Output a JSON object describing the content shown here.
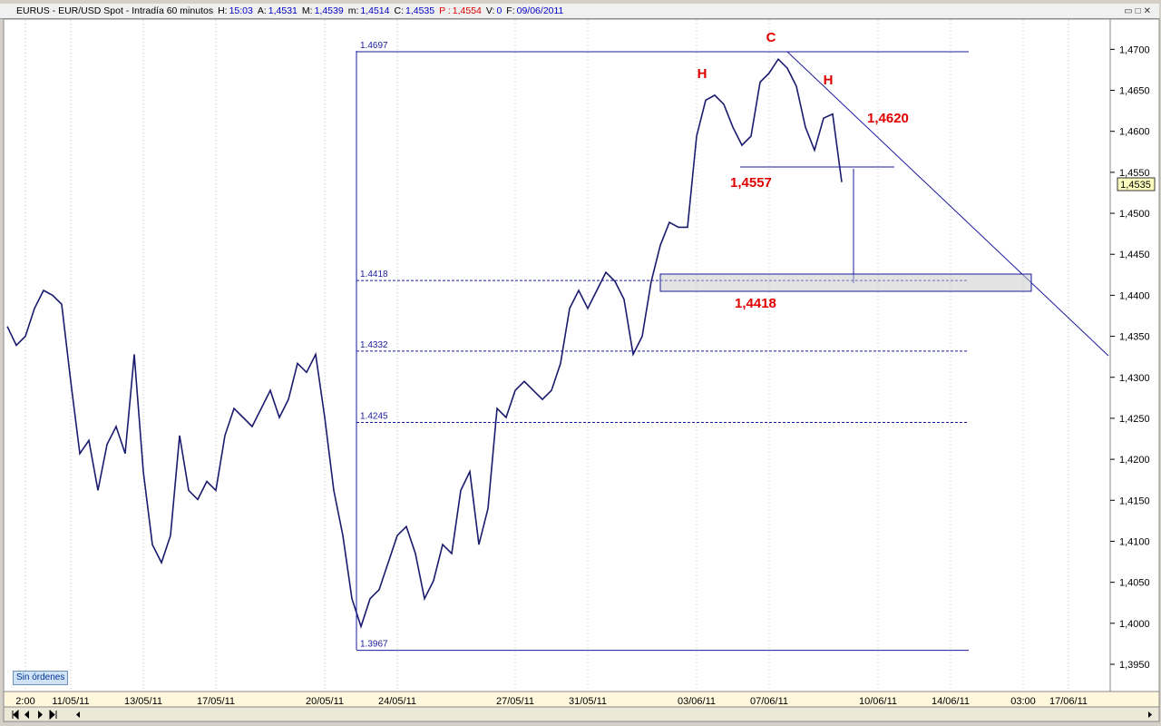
{
  "header": {
    "title": "EURUS - EUR/USD Spot - Intradía 60 minutos",
    "fields": [
      {
        "label": "H:",
        "value": "15:03"
      },
      {
        "label": "A:",
        "value": "1,4531"
      },
      {
        "label": "M:",
        "value": "1,4539"
      },
      {
        "label": "m:",
        "value": "1,4514"
      },
      {
        "label": "C:",
        "value": "1,4535"
      },
      {
        "label": "P :",
        "value": "1,4554"
      },
      {
        "label": "V:",
        "value": "0"
      },
      {
        "label": "F:",
        "value": "09/06/2011"
      }
    ]
  },
  "orders_button": "Sin órdenes",
  "annotations": {
    "c": "C",
    "h_left": "H",
    "h_right": "H",
    "target": "1,4620",
    "neckline": "1,4557",
    "support": "1,4418"
  },
  "chart_data": {
    "type": "line",
    "categories": [
      null,
      null,
      "2:00",
      null,
      null,
      null,
      null,
      "11/05/11",
      null,
      null,
      null,
      null,
      null,
      null,
      null,
      "13/05/11",
      null,
      null,
      null,
      null,
      null,
      null,
      null,
      "17/05/11",
      null,
      null,
      null,
      null,
      null,
      null,
      null,
      null,
      null,
      null,
      null,
      "20/05/11",
      null,
      null,
      null,
      null,
      null,
      null,
      null,
      "24/05/11",
      null,
      null,
      null,
      null,
      null,
      null,
      null,
      null,
      null,
      null,
      null,
      null,
      "27/05/11",
      null,
      null,
      null,
      null,
      null,
      null,
      null,
      "31/05/11",
      null,
      null,
      null,
      null,
      null,
      null,
      null,
      null,
      null,
      null,
      null,
      "03/06/11",
      null,
      null,
      null,
      null,
      null,
      null,
      null,
      "07/06/11",
      null,
      null,
      null,
      null,
      null,
      null,
      null,
      null,
      null,
      null,
      null,
      "10/06/11",
      null,
      null,
      null,
      null,
      null,
      null,
      null,
      "14/06/11",
      null,
      null,
      null,
      null,
      null,
      null,
      null,
      "03:00",
      null,
      null,
      null,
      null,
      "17/06/11",
      null,
      null,
      null,
      null
    ],
    "series": [
      {
        "name": "EURUS",
        "color": "#1a1a6e",
        "values": [
          1.4362,
          1.4339,
          1.435,
          1.4384,
          1.4406,
          1.44,
          1.4389,
          1.4295,
          1.4207,
          1.4223,
          1.4162,
          1.4218,
          1.424,
          1.4207,
          1.4328,
          1.4185,
          1.4096,
          1.4074,
          1.4107,
          1.4229,
          1.4162,
          1.4151,
          1.4173,
          1.4162,
          1.4229,
          1.4262,
          1.4251,
          1.424,
          1.4262,
          1.4284,
          1.4251,
          1.4273,
          1.4317,
          1.4306,
          1.4328,
          1.4251,
          1.4162,
          1.4107,
          1.403,
          1.3996,
          1.403,
          1.4041,
          1.4074,
          1.4107,
          1.4118,
          1.4085,
          1.403,
          1.4052,
          1.4096,
          1.4085,
          1.4162,
          1.4185,
          1.4096,
          1.414,
          1.4262,
          1.4251,
          1.4284,
          1.4295,
          1.4284,
          1.4273,
          1.4284,
          1.4317,
          1.4384,
          1.4406,
          1.4384,
          1.4406,
          1.4428,
          1.4417,
          1.4395,
          1.4328,
          1.435,
          1.4417,
          1.4461,
          1.4489,
          1.4483,
          1.4483,
          1.4594,
          1.4638,
          1.4644,
          1.4633,
          1.4605,
          1.4583,
          1.4594,
          1.466,
          1.4671,
          1.4688,
          1.4677,
          1.4655,
          1.4605,
          1.4577,
          1.4616,
          1.4621,
          1.4538,
          null,
          null,
          null,
          null,
          null,
          null,
          null,
          null,
          null,
          null,
          null,
          null,
          null,
          null,
          null,
          null,
          null,
          null,
          null,
          null,
          null,
          null,
          null,
          null,
          null,
          null,
          null,
          null,
          null
        ]
      }
    ],
    "ylim": [
      1.3919,
      1.4738
    ],
    "yticks": [
      {
        "value": 1.395,
        "label": "1,3950"
      },
      {
        "value": 1.4,
        "label": "1,4000"
      },
      {
        "value": 1.405,
        "label": "1,4050"
      },
      {
        "value": 1.41,
        "label": "1,4100"
      },
      {
        "value": 1.415,
        "label": "1,4150"
      },
      {
        "value": 1.42,
        "label": "1,4200"
      },
      {
        "value": 1.425,
        "label": "1,4250"
      },
      {
        "value": 1.43,
        "label": "1,4300"
      },
      {
        "value": 1.435,
        "label": "1,4350"
      },
      {
        "value": 1.44,
        "label": "1,4400"
      },
      {
        "value": 1.445,
        "label": "1,4450"
      },
      {
        "value": 1.45,
        "label": "1,4500"
      },
      {
        "value": 1.455,
        "label": "1,4550"
      },
      {
        "value": 1.46,
        "label": "1,4600"
      },
      {
        "value": 1.465,
        "label": "1,4650"
      },
      {
        "value": 1.47,
        "label": "1,4700"
      }
    ],
    "levels": [
      1.4697,
      1.4418,
      1.4332,
      1.4245,
      1.3967
    ],
    "grid": true
  }
}
